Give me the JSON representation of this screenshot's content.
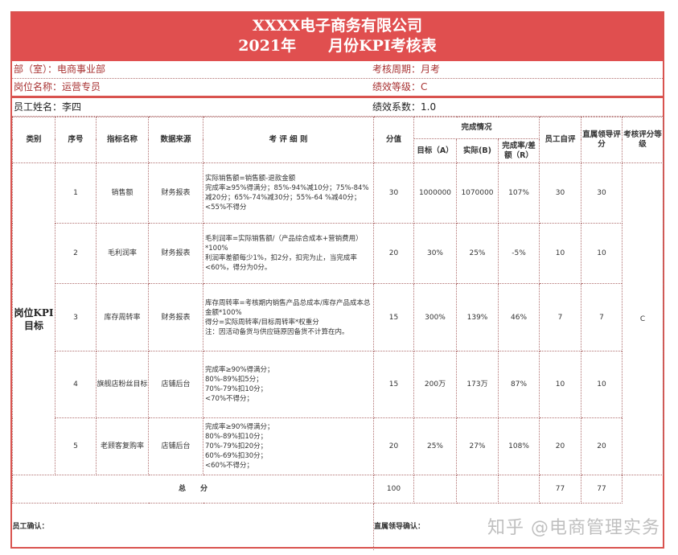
{
  "title": {
    "company": "XXXX电子商务有限公司",
    "year": "2021年",
    "subtitle": "月份KPI考核表"
  },
  "info": {
    "department": "部（室）：电商事业部",
    "period": "考核周期：月考",
    "position": "岗位名称：运营专员",
    "grade": "绩效等级：C",
    "employee": "员工姓名：李四",
    "coefficient": "绩效系数：1.0"
  },
  "headers": {
    "category": "类别",
    "seq": "序号",
    "indicator": "指标名称",
    "source": "数据来源",
    "rules": "考 评 细 则",
    "score": "分值",
    "completion": "完成情况",
    "target": "目标（A）",
    "actual": "实际(B)",
    "rate": "完成率/差额（R）",
    "self": "员工自评",
    "leader": "直属领导评分",
    "level": "考核评分等级"
  },
  "category": "岗位KPI目标",
  "overall_level": "C",
  "rows": [
    {
      "seq": "1",
      "name": "销售额",
      "source": "财务报表",
      "rules": [
        "实际销售额=销售额-退款金额",
        "完成率≥95%得满分；85%-94%减10分；75%-84%减20分；65%-74%减30分；55%-64 %减40分；<55%不得分"
      ],
      "score": "30",
      "target": "1000000",
      "actual": "1070000",
      "rate": "107%",
      "self": "30",
      "leader": "30"
    },
    {
      "seq": "2",
      "name": "毛利润率",
      "source": "财务报表",
      "rules": [
        "毛利润率=实际销售额/（产品综合成本+营销费用）*100%",
        "利润率差额每少1%，扣2分，扣完为止，当完成率<60%，得分为0分。"
      ],
      "score": "20",
      "target": "30%",
      "actual": "25%",
      "rate": "-5%",
      "self": "10",
      "leader": "10"
    },
    {
      "seq": "3",
      "name": "库存周转率",
      "source": "财务报表",
      "rules": [
        "库存周转率=考核期内销售产品总成本/库存产品成本总金额*100%",
        "得分=实际周转率/目标周转率*权重分",
        "注：因活动备货与供应链原因备货不计算在内。"
      ],
      "score": "15",
      "target": "300%",
      "actual": "139%",
      "rate": "46%",
      "self": "7",
      "leader": "7"
    },
    {
      "seq": "4",
      "name": "旗舰店粉丝目标",
      "source": "店铺后台",
      "rules": [
        "完成率≥90%得满分；",
        "80%-89%扣5分；",
        "70%-79%扣10分；",
        "<70%不得分；"
      ],
      "score": "15",
      "target": "200万",
      "actual": "173万",
      "rate": "87%",
      "self": "10",
      "leader": "10"
    },
    {
      "seq": "5",
      "name": "老顾客复购率",
      "source": "店铺后台",
      "rules": [
        "完成率≥90%得满分；",
        "80%-89%扣10分；",
        "70%-79%扣20分；",
        "60%-69%扣30分；",
        "<60%不得分；"
      ],
      "score": "20",
      "target": "25%",
      "actual": "27%",
      "rate": "108%",
      "self": "20",
      "leader": "20"
    }
  ],
  "total": {
    "label": "总　　分",
    "score": "100",
    "self": "77",
    "leader": "77"
  },
  "confirm": {
    "employee": "员工确认：",
    "leader": "直属领导确认："
  },
  "watermark": "知乎 @电商管理实务"
}
